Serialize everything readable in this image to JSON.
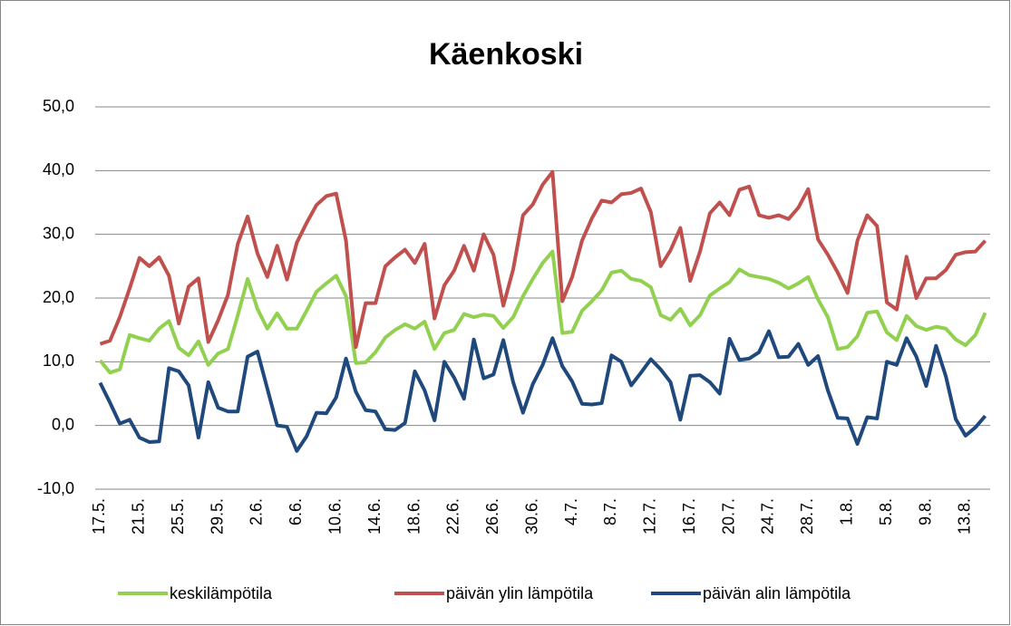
{
  "chart_data": {
    "type": "line",
    "title": "Käenkoski",
    "categories": [
      "17.5.",
      null,
      null,
      null,
      "21.5.",
      null,
      null,
      null,
      "25.5.",
      null,
      null,
      null,
      "29.5.",
      null,
      null,
      null,
      "2.6.",
      null,
      null,
      null,
      "6.6.",
      null,
      null,
      null,
      "10.6.",
      null,
      null,
      null,
      "14.6.",
      null,
      null,
      null,
      "18.6.",
      null,
      null,
      null,
      "22.6.",
      null,
      null,
      null,
      "26.6.",
      null,
      null,
      null,
      "30.6.",
      null,
      null,
      null,
      "4.7.",
      null,
      null,
      null,
      "8.7.",
      null,
      null,
      null,
      "12.7.",
      null,
      null,
      null,
      "16.7.",
      null,
      null,
      null,
      "20.7.",
      null,
      null,
      null,
      "24.7.",
      null,
      null,
      null,
      "28.7.",
      null,
      null,
      null,
      "1.8.",
      null,
      null,
      null,
      "5.8.",
      null,
      null,
      null,
      "9.8.",
      null,
      null,
      null,
      "13.8.",
      null,
      null
    ],
    "series": [
      {
        "name": "keskilämpötila",
        "color": "#92d050",
        "values": [
          10.2,
          8.3,
          8.8,
          14.2,
          13.7,
          13.3,
          15.2,
          16.4,
          12.2,
          11,
          13.2,
          9.5,
          11.3,
          12,
          17.3,
          23,
          18.3,
          15.2,
          17.6,
          15.2,
          15.2,
          18,
          21,
          22.3,
          23.5,
          20.3,
          9.8,
          9.9,
          11.5,
          13.8,
          15,
          15.9,
          15.2,
          16.3,
          12,
          14.5,
          15,
          17.5,
          17,
          17.4,
          17.2,
          15.3,
          17,
          20.3,
          23,
          25.5,
          27.3,
          14.5,
          14.7,
          18,
          19.5,
          21.2,
          24,
          24.3,
          23,
          22.7,
          21.7,
          17.3,
          16.6,
          18.3,
          15.7,
          17.3,
          20.4,
          21.5,
          22.5,
          24.5,
          23.6,
          23.3,
          23,
          22.4,
          21.5,
          22.3,
          23.3,
          19.8,
          17,
          12,
          12.3,
          14,
          17.7,
          17.9,
          14.6,
          13.4,
          17.2,
          15.6,
          15,
          15.5,
          15.2,
          13.5,
          12.6,
          14.2,
          17.7
        ]
      },
      {
        "name": "päivän ylin lämpötila",
        "color": "#c0504d",
        "values": [
          12.8,
          13.3,
          17,
          21.5,
          26.3,
          25,
          26.4,
          23.5,
          16,
          21.8,
          23.1,
          13.1,
          16.5,
          20.5,
          28.5,
          32.8,
          27,
          23.3,
          28.2,
          22.9,
          28.7,
          31.8,
          34.6,
          36,
          36.4,
          29,
          12.3,
          19.2,
          19.2,
          25,
          26.4,
          27.6,
          25.5,
          28.5,
          16.8,
          22,
          24.3,
          28.2,
          24.3,
          30,
          26.8,
          18.8,
          24.5,
          33,
          34.7,
          37.8,
          39.8,
          19.5,
          23.3,
          29,
          32.5,
          35.3,
          35,
          36.3,
          36.5,
          37.2,
          33.5,
          25,
          27.5,
          31,
          22.7,
          27.3,
          33.3,
          35,
          33,
          37,
          37.5,
          33,
          32.6,
          33,
          32.4,
          34.2,
          37.1,
          29.2,
          26.8,
          24,
          20.8,
          29,
          33,
          31.3,
          19.3,
          18.2,
          26.5,
          20,
          23.1,
          23.1,
          24.4,
          26.8,
          27.2,
          27.3,
          29
        ]
      },
      {
        "name": "päivän alin lämpötila",
        "color": "#1f497d",
        "values": [
          6.7,
          3.6,
          0.3,
          0.9,
          -1.9,
          -2.6,
          -2.5,
          9,
          8.5,
          6.3,
          -1.9,
          6.8,
          2.8,
          2.2,
          2.2,
          10.8,
          11.6,
          5.8,
          0,
          -0.2,
          -4,
          -1.7,
          2,
          1.9,
          4.4,
          10.5,
          5.3,
          2.4,
          2.2,
          -0.6,
          -0.7,
          0.4,
          8.5,
          5.5,
          0.8,
          10,
          7.5,
          4.2,
          13.5,
          7.4,
          8,
          13.4,
          6.8,
          2,
          6.5,
          9.5,
          13.7,
          9.3,
          6.9,
          3.4,
          3.3,
          3.5,
          11,
          10,
          6.3,
          8.3,
          10.4,
          8.8,
          6.8,
          0.9,
          7.8,
          7.9,
          6.8,
          5,
          13.6,
          10.3,
          10.5,
          11.5,
          14.8,
          10.7,
          10.8,
          12.8,
          9.5,
          10.9,
          5.5,
          1.2,
          1.1,
          -2.9,
          1.3,
          1.1,
          10,
          9.5,
          13.7,
          10.8,
          6.2,
          12.5,
          7.7,
          1,
          -1.6,
          -0.3,
          1.5
        ]
      }
    ],
    "ylim": [
      -10,
      50
    ],
    "yticks": [
      {
        "value": -10,
        "label": "-10,0"
      },
      {
        "value": 0,
        "label": "0,0"
      },
      {
        "value": 10,
        "label": "10,0"
      },
      {
        "value": 20,
        "label": "20,0"
      },
      {
        "value": 30,
        "label": "30,0"
      },
      {
        "value": 40,
        "label": "40,0"
      },
      {
        "value": 50,
        "label": "50,0"
      }
    ],
    "grid": true,
    "legend": "bottom"
  }
}
